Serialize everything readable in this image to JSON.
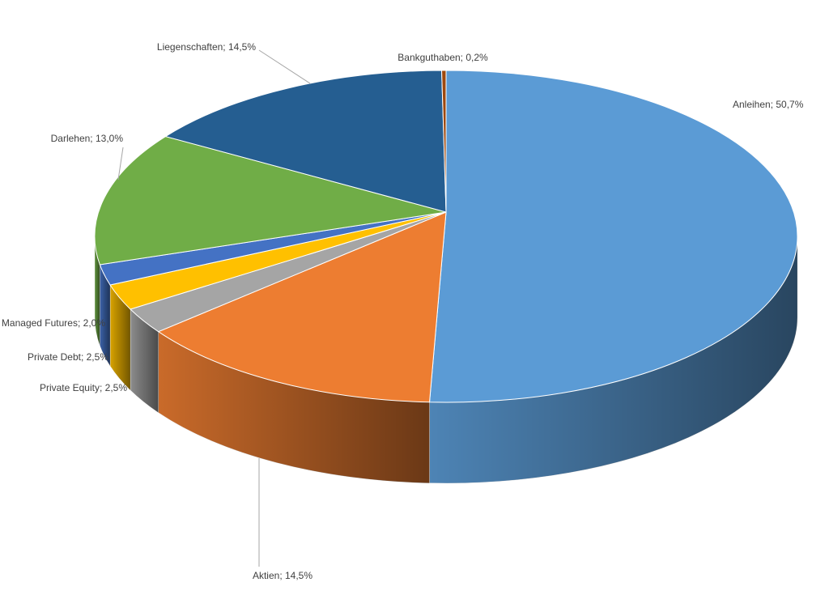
{
  "chart_data": {
    "type": "pie3d",
    "values": [
      50.7,
      14.5,
      2.5,
      2.5,
      2.0,
      13.0,
      14.5,
      0.2
    ],
    "value_labels": [
      "Anleihen; 50,7%",
      "Aktien; 14,5%",
      "Private Equity; 2,5%",
      "Private Debt; 2,5%",
      "Managed Futures; 2,0%",
      "Darlehen; 13,0%",
      "Liegenschaften; 14,5%",
      "Bankguthaben; 0,2%"
    ],
    "colors": [
      "#5b9bd5",
      "#ed7d31",
      "#a5a5a5",
      "#ffc000",
      "#4472c4",
      "#70ad47",
      "#255e91",
      "#9e480e"
    ]
  }
}
